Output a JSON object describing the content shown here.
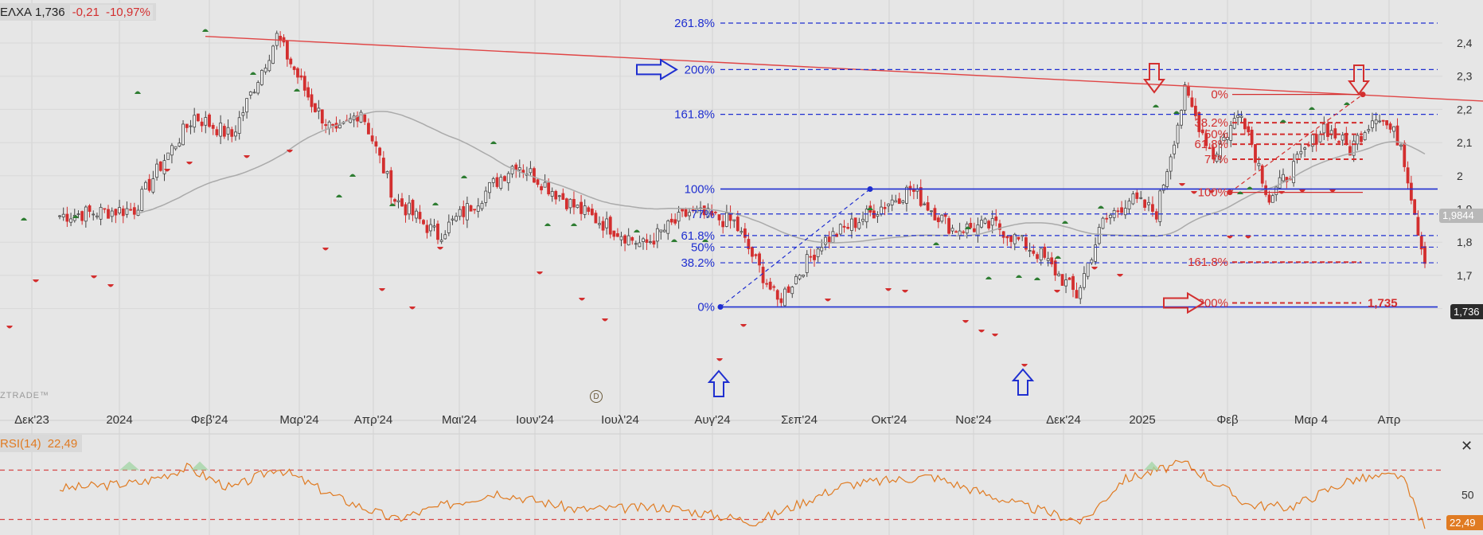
{
  "header": {
    "symbol": "ΕΛΧΑ",
    "price": "1,736",
    "change": "-0,21",
    "change_pct": "-10,97%"
  },
  "watermark": "ZTRADE™",
  "top_partial_label": "261.8%",
  "price_tag": "1,736",
  "ma_tag": "1,9844",
  "rsi": {
    "label": "RSI(14)",
    "value": "22,49",
    "level_label": "50",
    "value_tag": "22,49",
    "close_glyph": "✕"
  },
  "colors": {
    "background": "#e6e6e6",
    "up_candle": "#444444",
    "down_candle": "#d32f2f",
    "fib_blue": "#1f2fd0",
    "fib_red": "#d32f2f",
    "ma": "#aaaaaa",
    "rsi_line": "#e07b22",
    "marker_up": "#2e7d32",
    "marker_down": "#d32f2f"
  },
  "chart_data": [
    {
      "type": "candlestick",
      "title": "ΕΛΧΑ",
      "x_ticks": [
        "Δεκ'23",
        "2024",
        "Φεβ'24",
        "Μαρ'24",
        "Απρ'24",
        "Μαι'24",
        "Ιουν'24",
        "Ιουλ'24",
        "Αυγ'24",
        "Σεπ'24",
        "Οκτ'24",
        "Νοε'24",
        "Δεκ'24",
        "2025",
        "Φεβ",
        "Μαρ 4",
        "Απρ"
      ],
      "y_ticks": [
        "2,4",
        "2,3",
        "2,2",
        "2,1",
        "2",
        "1,9",
        "1,8",
        "1,7",
        "1,6"
      ],
      "ylim": [
        1.55,
        2.46
      ],
      "last_close": 1.736,
      "moving_average_last": 1.9844,
      "close_path": [
        {
          "x": "Δεκ'23",
          "y": 1.88
        },
        {
          "x": "2024",
          "y": 1.9
        },
        {
          "x": "2024",
          "y": 2.05
        },
        {
          "x": "2024",
          "y": 2.18
        },
        {
          "x": "Φεβ'24",
          "y": 2.12
        },
        {
          "x": "Φεβ'24",
          "y": 2.42
        },
        {
          "x": "Μαρ'24",
          "y": 2.22
        },
        {
          "x": "Μαρ'24",
          "y": 2.12
        },
        {
          "x": "Μαρ'24",
          "y": 2.2
        },
        {
          "x": "Απρ'24",
          "y": 1.93
        },
        {
          "x": "Απρ'24",
          "y": 1.82
        },
        {
          "x": "Μαι'24",
          "y": 1.93
        },
        {
          "x": "Μαι'24",
          "y": 2.04
        },
        {
          "x": "Ιουν'24",
          "y": 1.9
        },
        {
          "x": "Ιουλ'24",
          "y": 1.79
        },
        {
          "x": "Ιουλ'24",
          "y": 1.89
        },
        {
          "x": "Αυγ'24",
          "y": 1.86
        },
        {
          "x": "Αυγ'24",
          "y": 1.62
        },
        {
          "x": "Σεπ'24",
          "y": 1.8
        },
        {
          "x": "Σεπ'24",
          "y": 1.88
        },
        {
          "x": "Οκτ'24",
          "y": 1.96
        },
        {
          "x": "Οκτ'24",
          "y": 1.84
        },
        {
          "x": "Νοε'24",
          "y": 1.85
        },
        {
          "x": "Νοε'24",
          "y": 1.76
        },
        {
          "x": "Δεκ'24",
          "y": 1.64
        },
        {
          "x": "Δεκ'24",
          "y": 1.86
        },
        {
          "x": "Δεκ'24",
          "y": 1.93
        },
        {
          "x": "2025",
          "y": 1.89
        },
        {
          "x": "2025",
          "y": 2.25
        },
        {
          "x": "2025",
          "y": 2.06
        },
        {
          "x": "Φεβ",
          "y": 2.2
        },
        {
          "x": "Φεβ",
          "y": 1.93
        },
        {
          "x": "Φεβ",
          "y": 2.04
        },
        {
          "x": "Μαρ 4",
          "y": 2.15
        },
        {
          "x": "Μαρ 4",
          "y": 2.08
        },
        {
          "x": "Μαρ 4",
          "y": 2.19
        },
        {
          "x": "Απρ",
          "y": 2.1
        },
        {
          "x": "Απρ",
          "y": 1.736
        }
      ],
      "fibonacci_blue": {
        "levels": [
          {
            "label": "261.8%",
            "price": 2.46
          },
          {
            "label": "200%",
            "price": 2.32
          },
          {
            "label": "161.8%",
            "price": 2.185
          },
          {
            "label": "100%",
            "price": 1.96
          },
          {
            "label": "77%",
            "price": 1.885
          },
          {
            "label": "61.8%",
            "price": 1.82
          },
          {
            "label": "50%",
            "price": 1.785
          },
          {
            "label": "38.2%",
            "price": 1.738
          },
          {
            "label": "0%",
            "price": 1.605
          }
        ]
      },
      "fibonacci_red": {
        "levels": [
          {
            "label": "0%",
            "price": 2.245
          },
          {
            "label": "38.2%",
            "price": 2.16
          },
          {
            "label": "50%",
            "price": 2.125
          },
          {
            "label": "61.8%",
            "price": 2.095
          },
          {
            "label": "77%",
            "price": 2.05
          },
          {
            "label": "100%",
            "price": 1.95
          },
          {
            "label": "161.8%",
            "price": 1.74
          },
          {
            "label": "200%",
            "price": 1.617
          }
        ],
        "target_label": "1,735"
      }
    },
    {
      "type": "line",
      "title": "RSI(14)",
      "last_value": 22.49,
      "levels": [
        70,
        30
      ],
      "y_ticks": [
        "50"
      ],
      "path": [
        {
          "x": "Δεκ'23",
          "y": 55
        },
        {
          "x": "2024",
          "y": 60
        },
        {
          "x": "2024",
          "y": 72
        },
        {
          "x": "Φεβ'24",
          "y": 55
        },
        {
          "x": "Φεβ'24",
          "y": 72
        },
        {
          "x": "Μαρ'24",
          "y": 48
        },
        {
          "x": "Απρ'24",
          "y": 30
        },
        {
          "x": "Απρ'24",
          "y": 40
        },
        {
          "x": "Μαι'24",
          "y": 52
        },
        {
          "x": "Ιουν'24",
          "y": 38
        },
        {
          "x": "Ιουλ'24",
          "y": 40
        },
        {
          "x": "Αυγ'24",
          "y": 28
        },
        {
          "x": "Σεπ'24",
          "y": 58
        },
        {
          "x": "Οκτ'24",
          "y": 65
        },
        {
          "x": "Νοε'24",
          "y": 42
        },
        {
          "x": "Δεκ'24",
          "y": 28
        },
        {
          "x": "Δεκ'24",
          "y": 62
        },
        {
          "x": "2025",
          "y": 76
        },
        {
          "x": "Φεβ",
          "y": 42
        },
        {
          "x": "Φεβ",
          "y": 40
        },
        {
          "x": "Μαρ 4",
          "y": 62
        },
        {
          "x": "Απρ",
          "y": 66
        },
        {
          "x": "Απρ",
          "y": 22.49
        }
      ]
    }
  ]
}
